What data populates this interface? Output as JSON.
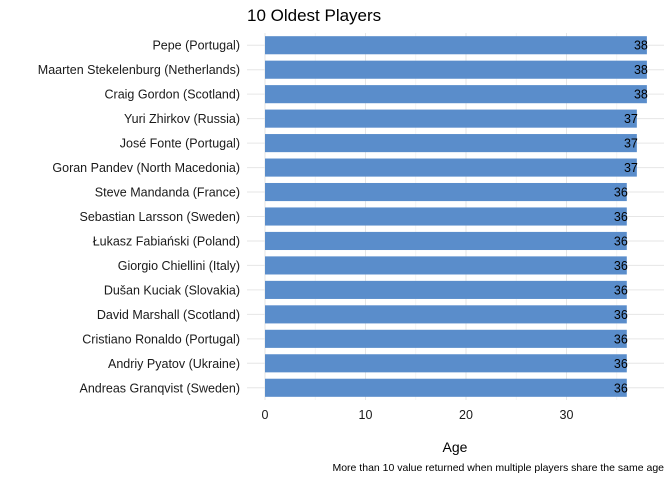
{
  "chart_data": {
    "type": "bar",
    "orientation": "horizontal",
    "title": "10 Oldest Players",
    "xlabel": "Age",
    "caption": "More than 10 value returned when multiple players share the same age",
    "xlim": [
      0,
      39
    ],
    "xticks": [
      0,
      10,
      20,
      30
    ],
    "grid": true,
    "bar_color": "#5A8DCB",
    "categories": [
      "Pepe (Portugal)",
      "Maarten Stekelenburg (Netherlands)",
      "Craig Gordon (Scotland)",
      "Yuri Zhirkov (Russia)",
      "José Fonte (Portugal)",
      "Goran Pandev  (North Macedonia)",
      "Steve Mandanda (France)",
      "Sebastian Larsson (Sweden)",
      "Łukasz Fabiański (Poland)",
      "Giorgio Chiellini  (Italy)",
      "Dušan Kuciak (Slovakia)",
      "David Marshall (Scotland)",
      "Cristiano Ronaldo  (Portugal)",
      "Andriy Pyatov  (Ukraine)",
      "Andreas Granqvist  (Sweden)"
    ],
    "values": [
      38,
      38,
      38,
      37,
      37,
      37,
      36,
      36,
      36,
      36,
      36,
      36,
      36,
      36,
      36
    ]
  }
}
